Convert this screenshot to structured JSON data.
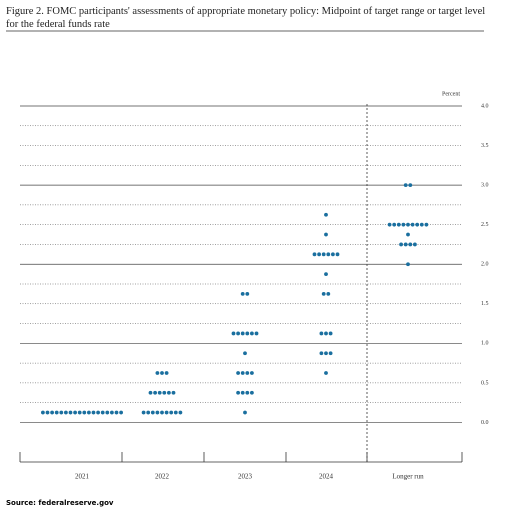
{
  "chart_data": {
    "type": "dot",
    "title": "Figure 2. FOMC participants' assessments of appropriate monetary policy: Midpoint of target range or target level for the federal funds rate",
    "y_label": "Percent",
    "source": "Source: federalreserve.gov",
    "color": "#1a6f9f",
    "categories": [
      "2021",
      "2022",
      "2023",
      "2024",
      "Longer run"
    ],
    "dots": [
      [
        {
          "y": 0.125,
          "count": 18
        }
      ],
      [
        {
          "y": 0.125,
          "count": 9
        },
        {
          "y": 0.375,
          "count": 6
        },
        {
          "y": 0.625,
          "count": 3
        }
      ],
      [
        {
          "y": 0.125,
          "count": 1
        },
        {
          "y": 0.375,
          "count": 4
        },
        {
          "y": 0.625,
          "count": 4
        },
        {
          "y": 0.875,
          "count": 1
        },
        {
          "y": 1.125,
          "count": 6
        },
        {
          "y": 1.625,
          "count": 2
        }
      ],
      [
        {
          "y": 0.625,
          "count": 1
        },
        {
          "y": 0.875,
          "count": 3
        },
        {
          "y": 1.125,
          "count": 3
        },
        {
          "y": 1.625,
          "count": 2
        },
        {
          "y": 1.875,
          "count": 1
        },
        {
          "y": 2.125,
          "count": 6
        },
        {
          "y": 2.375,
          "count": 1
        },
        {
          "y": 2.625,
          "count": 1
        }
      ],
      [
        {
          "y": 2.0,
          "count": 1
        },
        {
          "y": 2.25,
          "count": 4
        },
        {
          "y": 2.375,
          "count": 1
        },
        {
          "y": 2.5,
          "count": 9
        },
        {
          "y": 3.0,
          "count": 2
        }
      ]
    ],
    "ylim": [
      -0.5,
      4.0
    ],
    "yticks": [
      {
        "value": 0,
        "label": "0.0"
      },
      {
        "value": 0.5,
        "label": "0.5"
      },
      {
        "value": 1,
        "label": "1.0"
      },
      {
        "value": 1.5,
        "label": "1.5"
      },
      {
        "value": 2,
        "label": "2.0"
      },
      {
        "value": 2.5,
        "label": "2.5"
      },
      {
        "value": 3,
        "label": "3.0"
      },
      {
        "value": 3.5,
        "label": "3.5"
      },
      {
        "value": 4,
        "label": "4.0"
      }
    ],
    "minor_yticks": [
      0.25,
      0.75,
      1.25,
      1.75,
      2.25,
      2.75,
      3.25,
      3.75
    ],
    "grid": true
  }
}
